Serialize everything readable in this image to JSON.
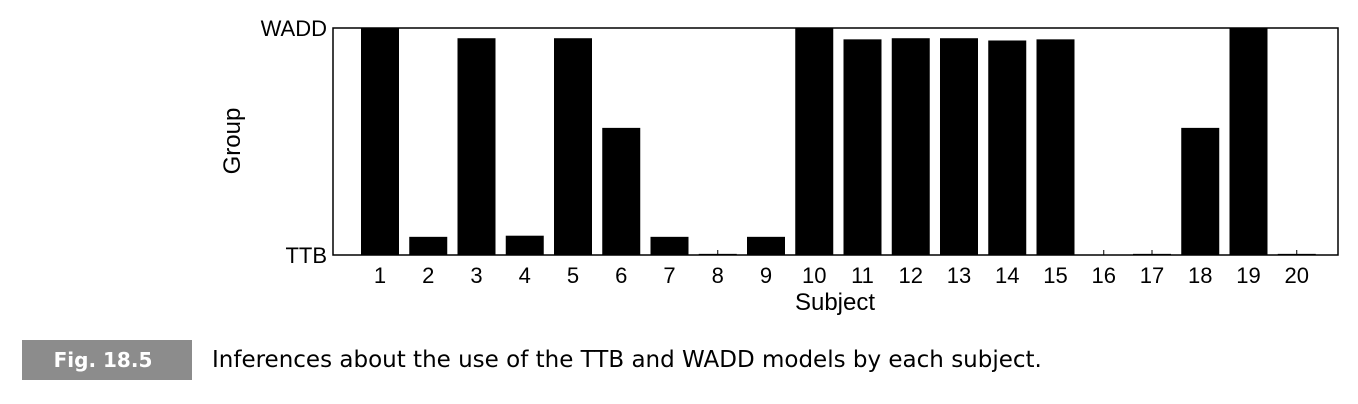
{
  "chart_data": {
    "type": "bar",
    "categories": [
      "1",
      "2",
      "3",
      "4",
      "5",
      "6",
      "7",
      "8",
      "9",
      "10",
      "11",
      "12",
      "13",
      "14",
      "15",
      "16",
      "17",
      "18",
      "19",
      "20"
    ],
    "values": [
      1.0,
      0.08,
      0.955,
      0.085,
      0.955,
      0.56,
      0.08,
      0.005,
      0.08,
      1.0,
      0.95,
      0.955,
      0.955,
      0.945,
      0.95,
      0.0,
      0.005,
      0.56,
      1.0,
      0.005
    ],
    "xlabel": "Subject",
    "ylabel": "Group",
    "ylim": [
      0,
      1
    ],
    "ytick_labels": [
      {
        "value": 0,
        "label": "TTB"
      },
      {
        "value": 1,
        "label": "WADD"
      }
    ],
    "bar_color": "#000000",
    "grid": false
  },
  "caption": {
    "label": "Fig. 18.5",
    "text": "Inferences about the use of the TTB and WADD models by each subject."
  }
}
